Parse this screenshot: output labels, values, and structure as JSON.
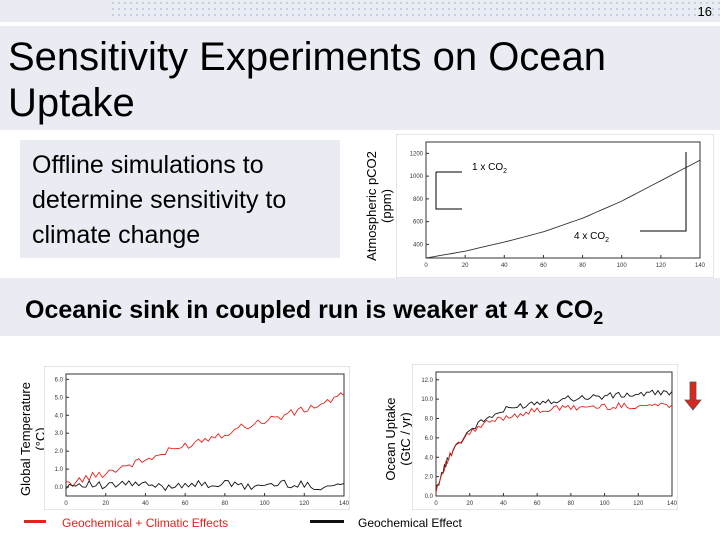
{
  "slide": {
    "number": "16",
    "title": "Sensitivity Experiments on Ocean Uptake",
    "bullet": "Offline simulations to determine sensitivity to climate change",
    "subheading_main": "Oceanic sink in coupled run is weaker at 4 x CO",
    "subheading_sub": "2"
  },
  "labels": {
    "top_chart_ylabel_line1": "Atmospheric pCO2",
    "top_chart_ylabel_line2": "(ppm)",
    "left_chart_ylabel_line1": "Global Temperature",
    "left_chart_ylabel_line2": "(°C)",
    "right_chart_ylabel_line1": "Ocean Uptake",
    "right_chart_ylabel_line2": "(GtC / yr)",
    "legend_red": "Geochemical + Climatic Effects",
    "legend_black": "Geochemical Effect"
  },
  "colors": {
    "red": "#e0241c",
    "black": "#111111",
    "band": "#e9ecf3"
  },
  "chart_data": [
    {
      "type": "line",
      "ylabel": "Atmospheric pCO2 (ppm)",
      "xticks": [
        "0",
        "20",
        "40",
        "60",
        "80",
        "100",
        "120",
        "140"
      ],
      "yticks": [
        "400",
        "600",
        "800",
        "1000",
        "1200"
      ],
      "xlim": [
        0,
        140
      ],
      "ylim": [
        280,
        1300
      ],
      "annotations": [
        {
          "text": "1 x CO",
          "sub": "2"
        },
        {
          "text": "4 x CO",
          "sub": "2"
        }
      ],
      "series": [
        {
          "x": [
            0,
            20,
            40,
            60,
            80,
            100,
            120,
            140
          ],
          "values": [
            280,
            340,
            420,
            510,
            630,
            780,
            960,
            1140
          ]
        }
      ]
    },
    {
      "type": "line",
      "ylabel": "Global Temperature (°C)",
      "xticks": [
        "0",
        "20",
        "40",
        "60",
        "80",
        "100",
        "120",
        "140"
      ],
      "yticks": [
        "0.0",
        "1.0",
        "2.0",
        "3.0",
        "4.0",
        "5.0",
        "6.0"
      ],
      "xlim": [
        0,
        140
      ],
      "ylim": [
        -0.5,
        6.3
      ],
      "series": [
        {
          "color": "red",
          "x": [
            0,
            10,
            20,
            30,
            40,
            50,
            60,
            70,
            80,
            90,
            100,
            110,
            120,
            130,
            140
          ],
          "values": [
            0.1,
            0.5,
            0.8,
            1.2,
            1.5,
            1.9,
            2.3,
            2.7,
            3.0,
            3.4,
            3.7,
            4.0,
            4.3,
            4.7,
            5.1
          ]
        },
        {
          "color": "black",
          "x": [
            0,
            10,
            20,
            30,
            40,
            50,
            60,
            70,
            80,
            90,
            100,
            110,
            120,
            130,
            140
          ],
          "values": [
            0.1,
            0.2,
            0.0,
            0.2,
            0.1,
            0.0,
            0.2,
            0.1,
            0.2,
            0.0,
            0.1,
            0.2,
            0.1,
            0.0,
            0.2
          ]
        }
      ]
    },
    {
      "type": "line",
      "ylabel": "Ocean Uptake (GtC / yr)",
      "xticks": [
        "0",
        "20",
        "40",
        "60",
        "80",
        "100",
        "120",
        "140"
      ],
      "yticks": [
        "0.0",
        "2.0",
        "4.0",
        "6.0",
        "8.0",
        "10.0",
        "12.0"
      ],
      "xlim": [
        0,
        140
      ],
      "ylim": [
        0,
        12.8
      ],
      "series": [
        {
          "color": "black",
          "x": [
            0,
            5,
            10,
            20,
            30,
            40,
            50,
            60,
            70,
            80,
            90,
            100,
            110,
            120,
            130,
            140
          ],
          "values": [
            0.6,
            3.0,
            4.8,
            6.8,
            8.0,
            8.8,
            9.3,
            9.7,
            9.9,
            10.1,
            10.2,
            10.3,
            10.4,
            10.5,
            10.6,
            10.8
          ]
        },
        {
          "color": "red",
          "x": [
            0,
            5,
            10,
            20,
            30,
            40,
            50,
            60,
            70,
            80,
            90,
            100,
            110,
            120,
            130,
            140
          ],
          "values": [
            0.6,
            3.0,
            4.7,
            6.5,
            7.5,
            8.1,
            8.5,
            8.8,
            9.0,
            9.1,
            9.2,
            9.2,
            9.3,
            9.3,
            9.4,
            9.4
          ]
        }
      ]
    }
  ]
}
